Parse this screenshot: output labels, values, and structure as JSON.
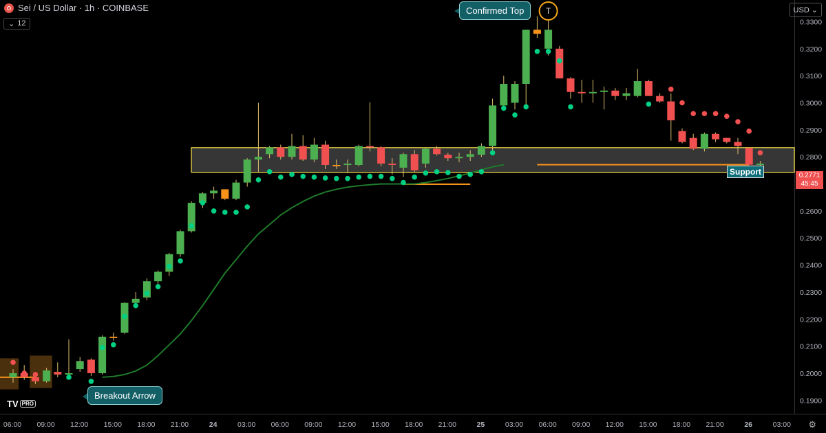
{
  "header": {
    "title": "Sei / US Dollar · 1h · COINBASE",
    "interval_badge": "12",
    "currency": "USD"
  },
  "annotations": {
    "top_marker": "T",
    "confirmed_top": "Confirmed Top",
    "breakout_arrow": "Breakout Arrow",
    "support_label": "Support"
  },
  "price_tag": {
    "price": "0.2771",
    "countdown": "45:45"
  },
  "branding": {
    "logo_text": "TV",
    "badge": "PRO"
  },
  "colors": {
    "up": "#4caf50",
    "down": "#f0504f",
    "neutral": "#f7931a",
    "dots_up": "#00d084",
    "dots_down": "#f0504f",
    "support_box": "#ffe74a",
    "ma_line": "#1f7a2a",
    "hline": "#f7931a"
  },
  "chart_data": {
    "type": "candlestick",
    "y_axis": {
      "ticks": [
        "0.3300",
        "0.3200",
        "0.3100",
        "0.3000",
        "0.2900",
        "0.2800",
        "0.2700",
        "0.2600",
        "0.2500",
        "0.2400",
        "0.2300",
        "0.2200",
        "0.2100",
        "0.2000",
        "0.1900"
      ],
      "range": [
        0.185,
        0.338
      ]
    },
    "x_axis": {
      "labels": [
        "06:00",
        "09:00",
        "12:00",
        "15:00",
        "18:00",
        "21:00",
        "24",
        "03:00",
        "06:00",
        "09:00",
        "12:00",
        "15:00",
        "18:00",
        "21:00",
        "25",
        "03:00",
        "06:00",
        "09:00",
        "12:00",
        "15:00",
        "18:00",
        "21:00",
        "26",
        "03:00"
      ]
    },
    "support_zone": [
      0.2743,
      0.2834
    ],
    "candles": [
      [
        0.1985,
        0.2015,
        0.1965,
        0.2
      ],
      [
        0.2,
        0.203,
        0.1975,
        0.1985
      ],
      [
        0.1985,
        0.2,
        0.196,
        0.197
      ],
      [
        0.197,
        0.202,
        0.1965,
        0.201
      ],
      [
        0.2005,
        0.204,
        0.1985,
        0.1995
      ],
      [
        0.1995,
        0.2125,
        0.199,
        0.2
      ],
      [
        0.2015,
        0.206,
        0.2005,
        0.2045
      ],
      [
        0.205,
        0.2055,
        0.199,
        0.2
      ],
      [
        0.2,
        0.214,
        0.1995,
        0.2135
      ],
      [
        0.2135,
        0.215,
        0.212,
        0.2135
      ],
      [
        0.215,
        0.2262,
        0.2145,
        0.226
      ],
      [
        0.226,
        0.23,
        0.224,
        0.2275
      ],
      [
        0.228,
        0.235,
        0.227,
        0.234
      ],
      [
        0.234,
        0.238,
        0.232,
        0.2375
      ],
      [
        0.2375,
        0.2445,
        0.236,
        0.244
      ],
      [
        0.244,
        0.253,
        0.243,
        0.2525
      ],
      [
        0.2525,
        0.2635,
        0.252,
        0.263
      ],
      [
        0.263,
        0.267,
        0.261,
        0.2665
      ],
      [
        0.2665,
        0.269,
        0.2645,
        0.2675
      ],
      [
        0.268,
        0.268,
        0.264,
        0.2645
      ],
      [
        0.2645,
        0.2715,
        0.264,
        0.2705
      ],
      [
        0.2705,
        0.2795,
        0.269,
        0.279
      ],
      [
        0.279,
        0.3,
        0.2745,
        0.28
      ],
      [
        0.281,
        0.284,
        0.2795,
        0.2835
      ],
      [
        0.2835,
        0.2845,
        0.279,
        0.28
      ],
      [
        0.28,
        0.2885,
        0.279,
        0.284
      ],
      [
        0.284,
        0.288,
        0.2785,
        0.279
      ],
      [
        0.279,
        0.287,
        0.278,
        0.2845
      ],
      [
        0.2845,
        0.286,
        0.2755,
        0.277
      ],
      [
        0.277,
        0.279,
        0.2755,
        0.277
      ],
      [
        0.277,
        0.279,
        0.274,
        0.2775
      ],
      [
        0.277,
        0.2845,
        0.2765,
        0.284
      ],
      [
        0.284,
        0.3002,
        0.282,
        0.2835
      ],
      [
        0.2835,
        0.284,
        0.2765,
        0.2775
      ],
      [
        0.2775,
        0.2795,
        0.2735,
        0.277
      ],
      [
        0.276,
        0.2815,
        0.2725,
        0.281
      ],
      [
        0.281,
        0.2825,
        0.2745,
        0.275
      ],
      [
        0.2775,
        0.2835,
        0.276,
        0.283
      ],
      [
        0.283,
        0.284,
        0.2805,
        0.281
      ],
      [
        0.2808,
        0.2815,
        0.2785,
        0.2795
      ],
      [
        0.2795,
        0.2815,
        0.278,
        0.28
      ],
      [
        0.28,
        0.2825,
        0.2785,
        0.281
      ],
      [
        0.2808,
        0.285,
        0.28,
        0.284
      ],
      [
        0.284,
        0.3015,
        0.282,
        0.299
      ],
      [
        0.299,
        0.31,
        0.297,
        0.307
      ],
      [
        0.3,
        0.308,
        0.2975,
        0.307
      ],
      [
        0.307,
        0.327,
        0.2985,
        0.327
      ],
      [
        0.327,
        0.332,
        0.324,
        0.3255
      ],
      [
        0.32,
        0.3292,
        0.3175,
        0.327
      ],
      [
        0.32,
        0.321,
        0.309,
        0.309
      ],
      [
        0.309,
        0.3095,
        0.3015,
        0.304
      ],
      [
        0.304,
        0.3085,
        0.3,
        0.3035
      ],
      [
        0.3035,
        0.3085,
        0.3,
        0.304
      ],
      [
        0.304,
        0.306,
        0.2975,
        0.3045
      ],
      [
        0.3045,
        0.3055,
        0.301,
        0.3025
      ],
      [
        0.3025,
        0.3055,
        0.301,
        0.3035
      ],
      [
        0.3025,
        0.3125,
        0.302,
        0.308
      ],
      [
        0.308,
        0.3085,
        0.3025,
        0.3025
      ],
      [
        0.3025,
        0.3035,
        0.3,
        0.3005
      ],
      [
        0.3005,
        0.3035,
        0.286,
        0.2935
      ],
      [
        0.2895,
        0.2905,
        0.285,
        0.2855
      ],
      [
        0.287,
        0.2885,
        0.2825,
        0.283
      ],
      [
        0.283,
        0.289,
        0.282,
        0.2885
      ],
      [
        0.2885,
        0.289,
        0.2855,
        0.2865
      ],
      [
        0.287,
        0.287,
        0.285,
        0.2855
      ],
      [
        0.2855,
        0.287,
        0.281,
        0.284
      ],
      [
        0.2833,
        0.2835,
        0.2771,
        0.2771
      ],
      [
        0.2771,
        0.2785,
        0.2765,
        0.2775
      ]
    ],
    "dots": [
      [
        0,
        0.204,
        "d"
      ],
      [
        1,
        0.2,
        "d"
      ],
      [
        2,
        0.1995,
        "d"
      ],
      [
        5,
        0.1985,
        "u"
      ],
      [
        7,
        0.197,
        "u"
      ],
      [
        8,
        0.2095,
        "u"
      ],
      [
        9,
        0.2105,
        "u"
      ],
      [
        10,
        0.221,
        "u"
      ],
      [
        11,
        0.225,
        "u"
      ],
      [
        12,
        0.2295,
        "u"
      ],
      [
        13,
        0.232,
        "u"
      ],
      [
        14,
        0.2395,
        "u"
      ],
      [
        15,
        0.2415,
        "u"
      ],
      [
        16,
        0.2545,
        "u"
      ],
      [
        17,
        0.263,
        "u"
      ],
      [
        18,
        0.26,
        "u"
      ],
      [
        19,
        0.2595,
        "u"
      ],
      [
        20,
        0.2595,
        "u"
      ],
      [
        21,
        0.2615,
        "u"
      ],
      [
        22,
        0.2715,
        "u"
      ],
      [
        23,
        0.2745,
        "u"
      ],
      [
        24,
        0.2725,
        "u"
      ],
      [
        25,
        0.2735,
        "u"
      ],
      [
        26,
        0.2728,
        "u"
      ],
      [
        27,
        0.2725,
        "u"
      ],
      [
        28,
        0.2722,
        "u"
      ],
      [
        29,
        0.272,
        "u"
      ],
      [
        30,
        0.272,
        "u"
      ],
      [
        31,
        0.2725,
        "u"
      ],
      [
        32,
        0.2728,
        "u"
      ],
      [
        33,
        0.2728,
        "u"
      ],
      [
        34,
        0.272,
        "u"
      ],
      [
        35,
        0.2705,
        "u"
      ],
      [
        36,
        0.2725,
        "u"
      ],
      [
        37,
        0.274,
        "u"
      ],
      [
        38,
        0.2745,
        "u"
      ],
      [
        39,
        0.2742,
        "u"
      ],
      [
        40,
        0.2728,
        "u"
      ],
      [
        41,
        0.2735,
        "u"
      ],
      [
        42,
        0.2745,
        "u"
      ],
      [
        43,
        0.2815,
        "u"
      ],
      [
        44,
        0.298,
        "u"
      ],
      [
        45,
        0.2955,
        "u"
      ],
      [
        46,
        0.2985,
        "u"
      ],
      [
        47,
        0.319,
        "u"
      ],
      [
        48,
        0.319,
        "u"
      ],
      [
        49,
        0.3155,
        "u"
      ],
      [
        50,
        0.2985,
        "u"
      ],
      [
        57,
        0.2995,
        "u"
      ],
      [
        59,
        0.305,
        "d"
      ],
      [
        60,
        0.3,
        "d"
      ],
      [
        61,
        0.296,
        "d"
      ],
      [
        62,
        0.296,
        "d"
      ],
      [
        63,
        0.296,
        "d"
      ],
      [
        64,
        0.295,
        "d"
      ],
      [
        65,
        0.293,
        "d"
      ],
      [
        66,
        0.2895,
        "d"
      ],
      [
        67,
        0.2815,
        "d"
      ]
    ],
    "ma_line": [
      [
        8,
        0.1985
      ],
      [
        9,
        0.1988
      ],
      [
        10,
        0.1995
      ],
      [
        11,
        0.2008
      ],
      [
        12,
        0.203
      ],
      [
        13,
        0.2065
      ],
      [
        14,
        0.2105
      ],
      [
        15,
        0.2145
      ],
      [
        16,
        0.2195
      ],
      [
        17,
        0.225
      ],
      [
        18,
        0.231
      ],
      [
        19,
        0.237
      ],
      [
        20,
        0.242
      ],
      [
        21,
        0.247
      ],
      [
        22,
        0.2515
      ],
      [
        23,
        0.255
      ],
      [
        24,
        0.2585
      ],
      [
        25,
        0.2612
      ],
      [
        26,
        0.2635
      ],
      [
        27,
        0.2655
      ],
      [
        28,
        0.267
      ],
      [
        29,
        0.268
      ],
      [
        30,
        0.2688
      ],
      [
        31,
        0.2693
      ],
      [
        32,
        0.2697
      ],
      [
        33,
        0.27
      ],
      [
        34,
        0.27
      ],
      [
        35,
        0.27
      ],
      [
        36,
        0.27
      ],
      [
        37,
        0.2705
      ],
      [
        38,
        0.2712
      ],
      [
        39,
        0.272
      ],
      [
        40,
        0.273
      ],
      [
        41,
        0.274
      ],
      [
        42,
        0.2752
      ],
      [
        43,
        0.2763
      ],
      [
        44,
        0.2771
      ]
    ],
    "hlines": [
      [
        35,
        41,
        0.2699
      ],
      [
        -2.5,
        2,
        0.1985
      ],
      [
        47,
        66,
        0.2771
      ]
    ],
    "brown_boxes": [
      [
        -2.5,
        0.5,
        0.2055,
        0.194
      ],
      [
        1.5,
        3.5,
        0.2065,
        0.1945
      ]
    ]
  }
}
